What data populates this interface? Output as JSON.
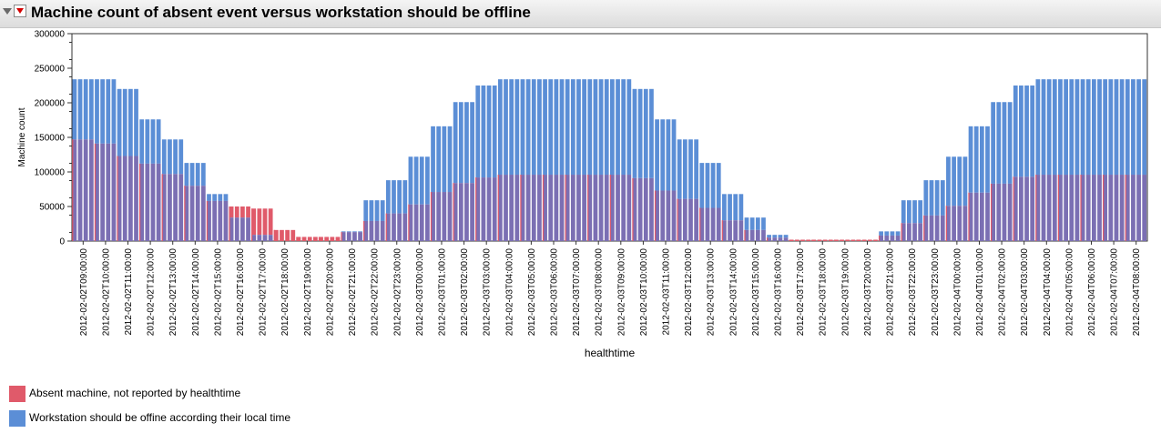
{
  "title": "Machine count of absent event versus workstation should be offline",
  "colors": {
    "absent": "#e05a6a",
    "offline": "#5b8ed6",
    "overlap": "#7b6fb3"
  },
  "legend": [
    {
      "label": "Absent machine, not reported by healthtime",
      "color": "#e05a6a"
    },
    {
      "label": "Workstation should be offine according their local time",
      "color": "#5b8ed6"
    }
  ],
  "chart_data": {
    "type": "bar",
    "title": "Machine count of absent event versus workstation should be offline",
    "xlabel": "healthtime",
    "ylabel": "Machine count",
    "ylim": [
      0,
      300000
    ],
    "yticks": [
      0,
      50000,
      100000,
      150000,
      200000,
      250000,
      300000
    ],
    "grid": false,
    "legend_position": "bottom-left",
    "categories": [
      "2012-02-02T09:00:00",
      "2012-02-02T10:00:00",
      "2012-02-02T11:00:00",
      "2012-02-02T12:00:00",
      "2012-02-02T13:00:00",
      "2012-02-02T14:00:00",
      "2012-02-02T15:00:00",
      "2012-02-02T16:00:00",
      "2012-02-02T17:00:00",
      "2012-02-02T18:00:00",
      "2012-02-02T19:00:00",
      "2012-02-02T20:00:00",
      "2012-02-02T21:00:00",
      "2012-02-02T22:00:00",
      "2012-02-02T23:00:00",
      "2012-02-03T00:00:00",
      "2012-02-03T01:00:00",
      "2012-02-03T02:00:00",
      "2012-02-03T03:00:00",
      "2012-02-03T04:00:00",
      "2012-02-03T05:00:00",
      "2012-02-03T06:00:00",
      "2012-02-03T07:00:00",
      "2012-02-03T08:00:00",
      "2012-02-03T09:00:00",
      "2012-02-03T10:00:00",
      "2012-02-03T11:00:00",
      "2012-02-03T12:00:00",
      "2012-02-03T13:00:00",
      "2012-02-03T14:00:00",
      "2012-02-03T15:00:00",
      "2012-02-03T16:00:00",
      "2012-02-03T17:00:00",
      "2012-02-03T18:00:00",
      "2012-02-03T19:00:00",
      "2012-02-03T20:00:00",
      "2012-02-03T21:00:00",
      "2012-02-03T22:00:00",
      "2012-02-03T23:00:00",
      "2012-02-04T00:00:00",
      "2012-02-04T01:00:00",
      "2012-02-04T02:00:00",
      "2012-02-04T03:00:00",
      "2012-02-04T04:00:00",
      "2012-02-04T05:00:00",
      "2012-02-04T06:00:00",
      "2012-02-04T07:00:00",
      "2012-02-04T08:00:00"
    ],
    "series": [
      {
        "name": "Absent machine, not reported by healthtime",
        "values": [
          147000,
          141000,
          123000,
          112000,
          97000,
          80000,
          58000,
          50000,
          47000,
          16000,
          6000,
          6000,
          13000,
          29000,
          40000,
          53000,
          71000,
          84000,
          92000,
          96000,
          96000,
          96000,
          96000,
          96000,
          96000,
          91000,
          73000,
          61000,
          48000,
          30000,
          16000,
          5000,
          2000,
          2000,
          2000,
          2000,
          8000,
          26000,
          37000,
          51000,
          70000,
          83000,
          93000,
          96000,
          96000,
          96000,
          96000,
          96000
        ]
      },
      {
        "name": "Workstation should be offine according their local time",
        "values": [
          234000,
          234000,
          220000,
          176000,
          147000,
          113000,
          68000,
          34000,
          9000,
          0,
          0,
          0,
          14000,
          59000,
          88000,
          122000,
          166000,
          201000,
          225000,
          234000,
          234000,
          234000,
          234000,
          234000,
          234000,
          220000,
          176000,
          147000,
          113000,
          68000,
          34000,
          9000,
          0,
          0,
          0,
          0,
          14000,
          59000,
          88000,
          122000,
          166000,
          201000,
          225000,
          234000,
          234000,
          234000,
          234000,
          234000
        ]
      }
    ]
  }
}
